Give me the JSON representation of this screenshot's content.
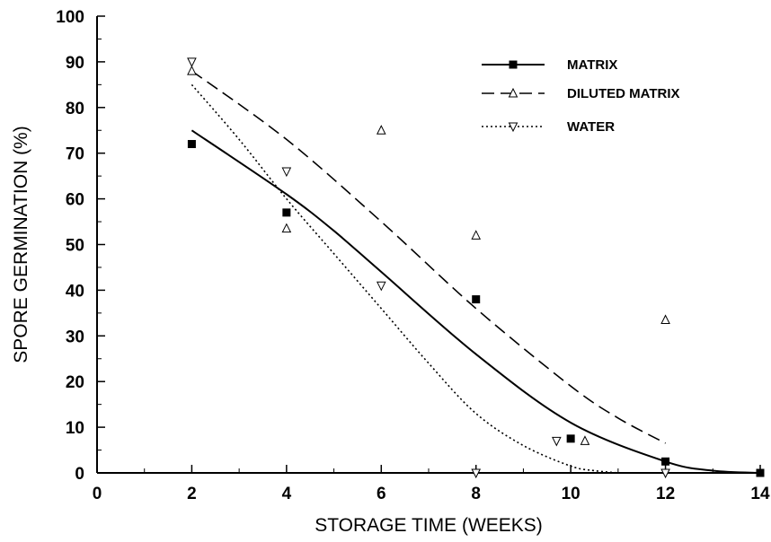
{
  "chart_data": {
    "type": "scatter",
    "title": "",
    "xlabel": "STORAGE TIME (WEEKS)",
    "ylabel": "SPORE GERMINATION (%)",
    "xlim": [
      0,
      14
    ],
    "ylim": [
      0,
      100
    ],
    "x_ticks": [
      0,
      2,
      4,
      6,
      8,
      10,
      12,
      14
    ],
    "y_ticks": [
      0,
      10,
      20,
      30,
      40,
      50,
      60,
      70,
      80,
      90,
      100
    ],
    "grid": false,
    "legend_position": "top-right",
    "series": [
      {
        "name": "MATRIX",
        "marker": "filled-square",
        "line": "solid",
        "points": [
          [
            2,
            72
          ],
          [
            4,
            57
          ],
          [
            8,
            38
          ],
          [
            10,
            7.5
          ],
          [
            12,
            2.5
          ],
          [
            14,
            0
          ]
        ],
        "fit": [
          [
            2,
            75
          ],
          [
            4,
            61
          ],
          [
            5,
            53
          ],
          [
            6,
            44
          ],
          [
            8,
            26
          ],
          [
            10,
            11
          ],
          [
            12,
            2.5
          ],
          [
            13,
            0.5
          ],
          [
            14,
            0
          ]
        ]
      },
      {
        "name": "DILUTED MATRIX",
        "marker": "open-triangle-up",
        "line": "dashed",
        "points": [
          [
            2,
            88
          ],
          [
            4,
            53.5
          ],
          [
            6,
            75
          ],
          [
            8,
            52
          ],
          [
            10.3,
            7
          ],
          [
            12,
            33.5
          ]
        ],
        "fit": [
          [
            2,
            88
          ],
          [
            4,
            73
          ],
          [
            6,
            55
          ],
          [
            8,
            36
          ],
          [
            10,
            19
          ],
          [
            11,
            12
          ],
          [
            12,
            6.5
          ]
        ]
      },
      {
        "name": "WATER",
        "marker": "open-triangle-down",
        "line": "dotted",
        "points": [
          [
            2,
            90
          ],
          [
            4,
            66
          ],
          [
            6,
            41
          ],
          [
            8,
            0
          ],
          [
            9.7,
            7
          ],
          [
            12,
            0
          ]
        ],
        "fit": [
          [
            2,
            85
          ],
          [
            3,
            73
          ],
          [
            4,
            60
          ],
          [
            5,
            48
          ],
          [
            6,
            36
          ],
          [
            7,
            24
          ],
          [
            8,
            13
          ],
          [
            9,
            6
          ],
          [
            10,
            1.5
          ],
          [
            10.5,
            0.5
          ],
          [
            11,
            0
          ]
        ]
      }
    ]
  }
}
